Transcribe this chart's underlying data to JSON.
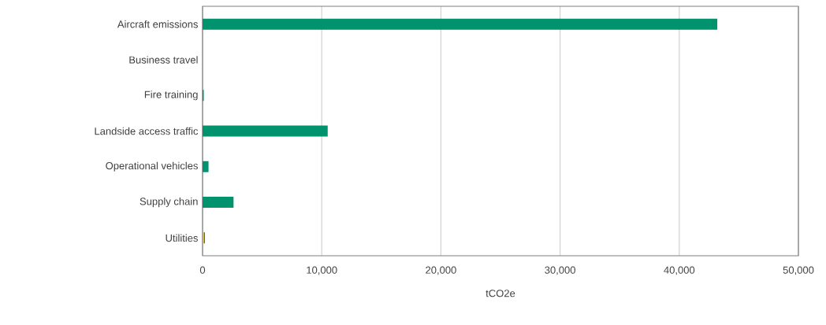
{
  "chart_data": {
    "type": "bar",
    "orientation": "horizontal",
    "stacked": true,
    "categories": [
      "Aircraft emissions",
      "Business travel",
      "Fire training",
      "Landside access traffic",
      "Operational vehicles",
      "Supply chain",
      "Utilities"
    ],
    "series": [
      {
        "color": "#f0a30a",
        "values": [
          0,
          0,
          0,
          0,
          0,
          0,
          110
        ]
      },
      {
        "color": "#00936e",
        "values": [
          43200,
          0,
          100,
          10500,
          500,
          2600,
          90
        ]
      }
    ],
    "xlim": [
      0,
      50000
    ],
    "xticks": [
      {
        "value": 0,
        "label": "0"
      },
      {
        "value": 10000,
        "label": "10,000"
      },
      {
        "value": 20000,
        "label": "20,000"
      },
      {
        "value": 30000,
        "label": "30,000"
      },
      {
        "value": 40000,
        "label": "40,000"
      },
      {
        "value": 50000,
        "label": "50,000"
      }
    ],
    "xlabel": "tCO2e",
    "grid": "x"
  }
}
